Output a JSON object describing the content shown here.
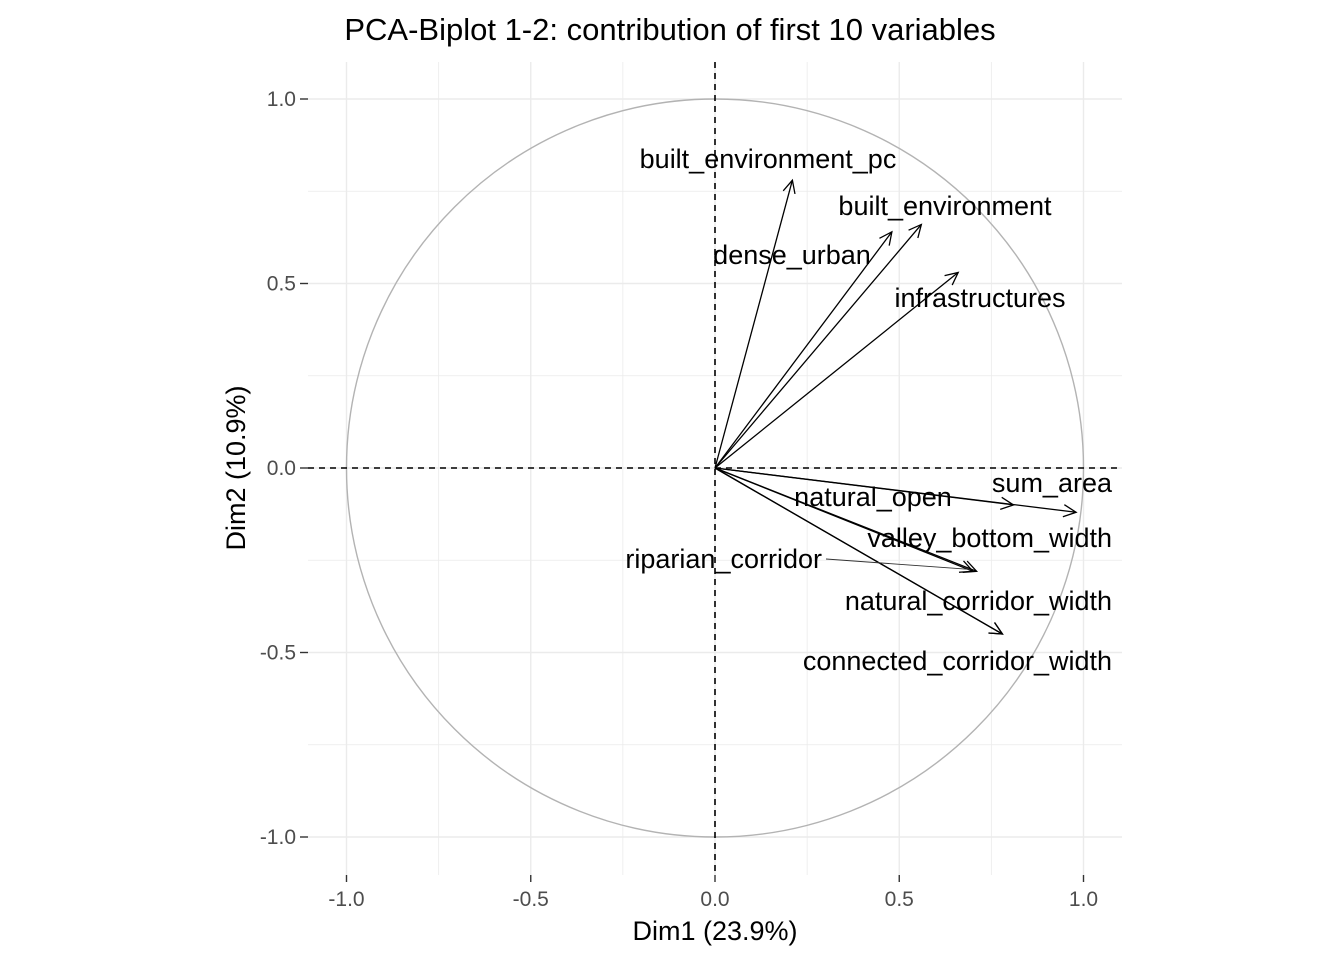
{
  "chart_data": {
    "type": "scatter",
    "subtype": "pca-variable-correlation-circle",
    "title": "PCA-Biplot 1-2: contribution of first 10 variables",
    "xlabel": "Dim1 (23.9%)",
    "ylabel": "Dim2 (10.9%)",
    "xlim": [
      -1.1,
      1.1
    ],
    "ylim": [
      -1.1,
      1.1
    ],
    "x_ticks": [
      -1.0,
      -0.5,
      0.0,
      0.5,
      1.0
    ],
    "x_tick_labels": [
      "-1.0",
      "-0.5",
      "0.0",
      "0.5",
      "1.0"
    ],
    "y_ticks": [
      -1.0,
      -0.5,
      0.0,
      0.5,
      1.0
    ],
    "y_tick_labels": [
      "-1.0",
      "-0.5",
      "0.0",
      "0.5",
      "1.0"
    ],
    "grid": true,
    "unit_circle": true,
    "reference_lines": "dashed at x=0 and y=0",
    "variables": [
      {
        "name": "built_environment_pc",
        "x": 0.21,
        "y": 0.78
      },
      {
        "name": "built_environment",
        "x": 0.56,
        "y": 0.66
      },
      {
        "name": "dense_urban",
        "x": 0.48,
        "y": 0.64
      },
      {
        "name": "infrastructures",
        "x": 0.66,
        "y": 0.53
      },
      {
        "name": "sum_area",
        "x": 0.98,
        "y": -0.12
      },
      {
        "name": "natural_open",
        "x": 0.81,
        "y": -0.1
      },
      {
        "name": "valley_bottom_width",
        "x": 0.71,
        "y": -0.28
      },
      {
        "name": "riparian_corridor",
        "x": 0.7,
        "y": -0.28
      },
      {
        "name": "natural_corridor_width",
        "x": 0.78,
        "y": -0.45
      },
      {
        "name": "connected_corridor_width",
        "x": 0.78,
        "y": -0.45
      }
    ]
  },
  "colors": {
    "background": "#ffffff",
    "grid": "#ebebeb",
    "circle": "#b3b3b3",
    "arrow": "#000000",
    "tick_text": "#4d4d4d",
    "text": "#000000"
  }
}
